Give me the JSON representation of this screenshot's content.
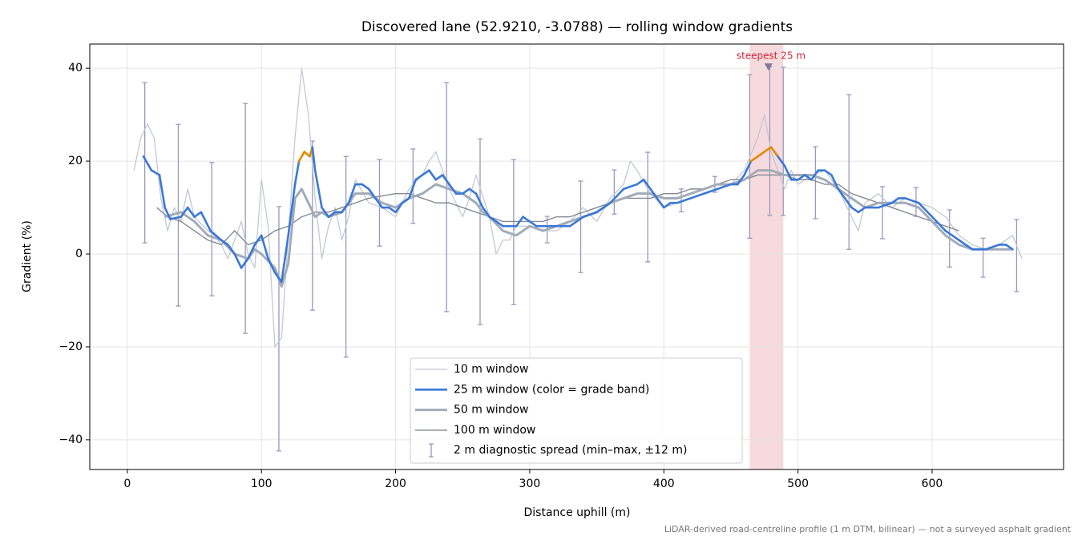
{
  "chart_data": {
    "type": "line",
    "title": "Discovered lane (52.9210, -3.0788) — rolling window gradients",
    "x_label": "Distance uphill (m)",
    "y_label": "Gradient (%)",
    "footnote": "LiDAR-derived road-centreline profile (1 m DTM, bilinear) — not a surveyed asphalt gradient",
    "xlim": [
      -28,
      698
    ],
    "ylim": [
      -46.4,
      45.2
    ],
    "xticks": [
      0,
      100,
      200,
      300,
      400,
      500,
      600
    ],
    "yticks": [
      {
        "value": -40,
        "label": "−40"
      },
      {
        "value": -20,
        "label": "−20"
      },
      0,
      20,
      40
    ],
    "grid": true,
    "legend": "lower center",
    "series": [
      {
        "name": "10 m window",
        "color": "#c3c8d2",
        "width": 1.3,
        "x": [
          5,
          10,
          15,
          20,
          25,
          30,
          35,
          40,
          45,
          50,
          60,
          65,
          70,
          75,
          80,
          85,
          90,
          95,
          100,
          105,
          110,
          115,
          120,
          125,
          130,
          135,
          140,
          145,
          150,
          155,
          160,
          165,
          170,
          180,
          190,
          200,
          210,
          220,
          225,
          230,
          240,
          250,
          255,
          260,
          270,
          275,
          280,
          285,
          290,
          300,
          310,
          320,
          330,
          340,
          350,
          360,
          370,
          375,
          380,
          390,
          400,
          410,
          420,
          430,
          440,
          450,
          460,
          470,
          475,
          480,
          490,
          495,
          500,
          510,
          520,
          530,
          540,
          545,
          550,
          560,
          570,
          580,
          590,
          600,
          610,
          620,
          630,
          640,
          650,
          660,
          667
        ],
        "values": [
          18,
          25,
          28,
          25,
          12,
          5,
          10,
          7,
          14,
          8,
          5,
          4,
          2,
          -1,
          3,
          7,
          0,
          -3,
          16,
          6,
          -20,
          -18,
          4,
          25,
          40,
          30,
          12,
          -1,
          6,
          10,
          3,
          8,
          16,
          11,
          10,
          8,
          14,
          17,
          20,
          22,
          14,
          8,
          12,
          17,
          8,
          0,
          3,
          3,
          6,
          6,
          5,
          5,
          7,
          10,
          7,
          12,
          15,
          20,
          18,
          13,
          10,
          11,
          12,
          13,
          14,
          15,
          18,
          25,
          30,
          22,
          14,
          18,
          15,
          17,
          18,
          14,
          8,
          5,
          11,
          13,
          10,
          12,
          11,
          10,
          8,
          4,
          2,
          1,
          2,
          4,
          -1
        ]
      },
      {
        "name": "25 m window (color = grade band)",
        "color": "#3a78d8",
        "band_color": "#e08a00",
        "band_threshold": 20,
        "width": 2.6,
        "x": [
          12,
          18,
          24,
          28,
          32,
          40,
          45,
          50,
          55,
          62,
          70,
          75,
          80,
          85,
          90,
          95,
          100,
          105,
          110,
          115,
          120,
          125,
          128,
          132,
          136,
          138,
          140,
          145,
          150,
          155,
          160,
          165,
          170,
          175,
          180,
          185,
          190,
          195,
          200,
          205,
          210,
          215,
          220,
          225,
          230,
          235,
          240,
          245,
          250,
          255,
          260,
          265,
          270,
          275,
          280,
          285,
          290,
          295,
          300,
          305,
          310,
          320,
          330,
          340,
          350,
          360,
          370,
          380,
          385,
          390,
          395,
          400,
          405,
          410,
          420,
          430,
          440,
          450,
          455,
          460,
          465,
          470,
          475,
          480,
          485,
          490,
          495,
          500,
          505,
          510,
          515,
          520,
          525,
          530,
          535,
          540,
          545,
          550,
          560,
          570,
          575,
          580,
          590,
          600,
          610,
          620,
          630,
          640,
          650,
          655,
          660
        ],
        "values": [
          21,
          18,
          17,
          10,
          7.5,
          8,
          10,
          8,
          9,
          5,
          3,
          2,
          0,
          -3,
          -1,
          2,
          4,
          -1,
          -4,
          -6,
          4,
          15,
          20,
          22,
          21,
          23,
          18,
          10,
          8,
          9,
          9,
          11,
          15,
          15,
          14,
          12,
          10,
          10,
          9,
          11,
          12,
          16,
          17,
          18,
          16,
          17,
          15,
          13,
          13,
          14,
          13,
          10,
          8,
          7,
          6,
          6,
          6,
          8,
          7,
          6,
          6,
          6,
          6,
          8,
          9,
          11,
          14,
          15,
          16,
          14,
          12,
          10,
          11,
          11,
          12,
          13,
          14,
          15,
          15,
          17,
          20,
          21,
          22,
          23,
          21,
          19,
          16,
          16,
          17,
          16,
          18,
          18,
          17,
          14,
          12,
          10,
          9,
          10,
          10,
          11,
          12,
          12,
          11,
          8,
          5,
          3,
          1,
          1,
          2,
          2,
          1
        ]
      },
      {
        "name": "50 m window",
        "color": "#a2abb9",
        "width": 3,
        "x": [
          28,
          40,
          50,
          60,
          70,
          80,
          90,
          95,
          100,
          110,
          115,
          120,
          125,
          130,
          135,
          140,
          145,
          150,
          160,
          170,
          180,
          190,
          200,
          210,
          220,
          230,
          240,
          250,
          260,
          265,
          270,
          280,
          290,
          300,
          310,
          320,
          330,
          340,
          350,
          360,
          370,
          380,
          390,
          400,
          410,
          420,
          430,
          440,
          450,
          460,
          470,
          480,
          490,
          500,
          510,
          520,
          530,
          540,
          550,
          560,
          570,
          580,
          590,
          600,
          610,
          620,
          630,
          640,
          650,
          660
        ],
        "values": [
          8,
          9,
          7,
          4,
          3,
          0,
          -1,
          1,
          0,
          -3,
          -7,
          -2,
          12,
          14,
          11,
          8,
          9,
          8,
          9,
          13,
          13,
          11,
          10,
          12,
          13,
          15,
          14,
          13,
          11,
          9,
          8,
          5,
          4,
          6,
          5,
          6,
          7,
          8,
          9,
          11,
          12,
          13,
          13,
          12,
          12,
          13,
          14,
          15,
          15,
          16,
          18,
          18,
          17,
          17,
          17,
          16,
          14,
          12,
          10,
          11,
          11,
          11,
          10,
          7,
          4,
          2,
          1,
          1,
          1,
          1
        ]
      },
      {
        "name": "100 m window",
        "color": "#858993",
        "width": 1.4,
        "x": [
          22,
          30,
          40,
          50,
          60,
          70,
          80,
          90,
          100,
          110,
          120,
          130,
          140,
          150,
          160,
          170,
          180,
          190,
          200,
          210,
          220,
          230,
          240,
          250,
          260,
          270,
          280,
          290,
          300,
          310,
          320,
          330,
          340,
          350,
          360,
          370,
          380,
          390,
          400,
          410,
          420,
          430,
          440,
          450,
          460,
          470,
          480,
          490,
          500,
          510,
          520,
          530,
          540,
          550,
          560,
          570,
          580,
          590,
          600,
          610,
          620
        ],
        "values": [
          10,
          8,
          7,
          5,
          3,
          2,
          5,
          2,
          3,
          5,
          6,
          8,
          9,
          9,
          10,
          11,
          12,
          12.5,
          13,
          13,
          12,
          11,
          11,
          10,
          9,
          8,
          7,
          7,
          7,
          7,
          8,
          8,
          9,
          10,
          11,
          12,
          12,
          12,
          13,
          13,
          14,
          14,
          15,
          16,
          16,
          17,
          17,
          17,
          16,
          16,
          15,
          15,
          13,
          12,
          11,
          10,
          9,
          8,
          7,
          6,
          5
        ]
      }
    ],
    "errorbars": {
      "name": "2 m diagnostic spread (min–max, ±12 m)",
      "color": "#9b97bf",
      "x": [
        13,
        38,
        63,
        88,
        113,
        138,
        163,
        188,
        213,
        238,
        263,
        288,
        313,
        338,
        363,
        388,
        413,
        438,
        464,
        479,
        489,
        513,
        538,
        563,
        588,
        613,
        638,
        663
      ],
      "max": [
        36.9,
        27.9,
        19.7,
        32.4,
        10.2,
        24.3,
        21,
        20.3,
        22.6,
        36.9,
        24.8,
        20.3,
        8.1,
        15.7,
        18.1,
        21.9,
        14,
        16.7,
        38.6,
        40.3,
        40.2,
        23.1,
        34.3,
        14.5,
        14.3,
        9.5,
        3.4,
        7.4
      ],
      "min": [
        2.4,
        -11.2,
        -9,
        -17.1,
        -42.4,
        -12.1,
        -22.2,
        1.7,
        6.6,
        -12.4,
        -15.2,
        -10.9,
        2.4,
        -4,
        8.6,
        -1.7,
        9.1,
        13.3,
        3.4,
        8.3,
        8.3,
        7.6,
        1,
        3.3,
        8.1,
        -2.8,
        -5,
        -8.1
      ]
    },
    "highlight": {
      "x": [
        464,
        489
      ],
      "color": "#f6dadd",
      "label": "steepest 25 m",
      "label_color": "#c8283a",
      "marker": {
        "x": 478,
        "y": 40
      },
      "marker_color": "#7f7a9a"
    }
  }
}
